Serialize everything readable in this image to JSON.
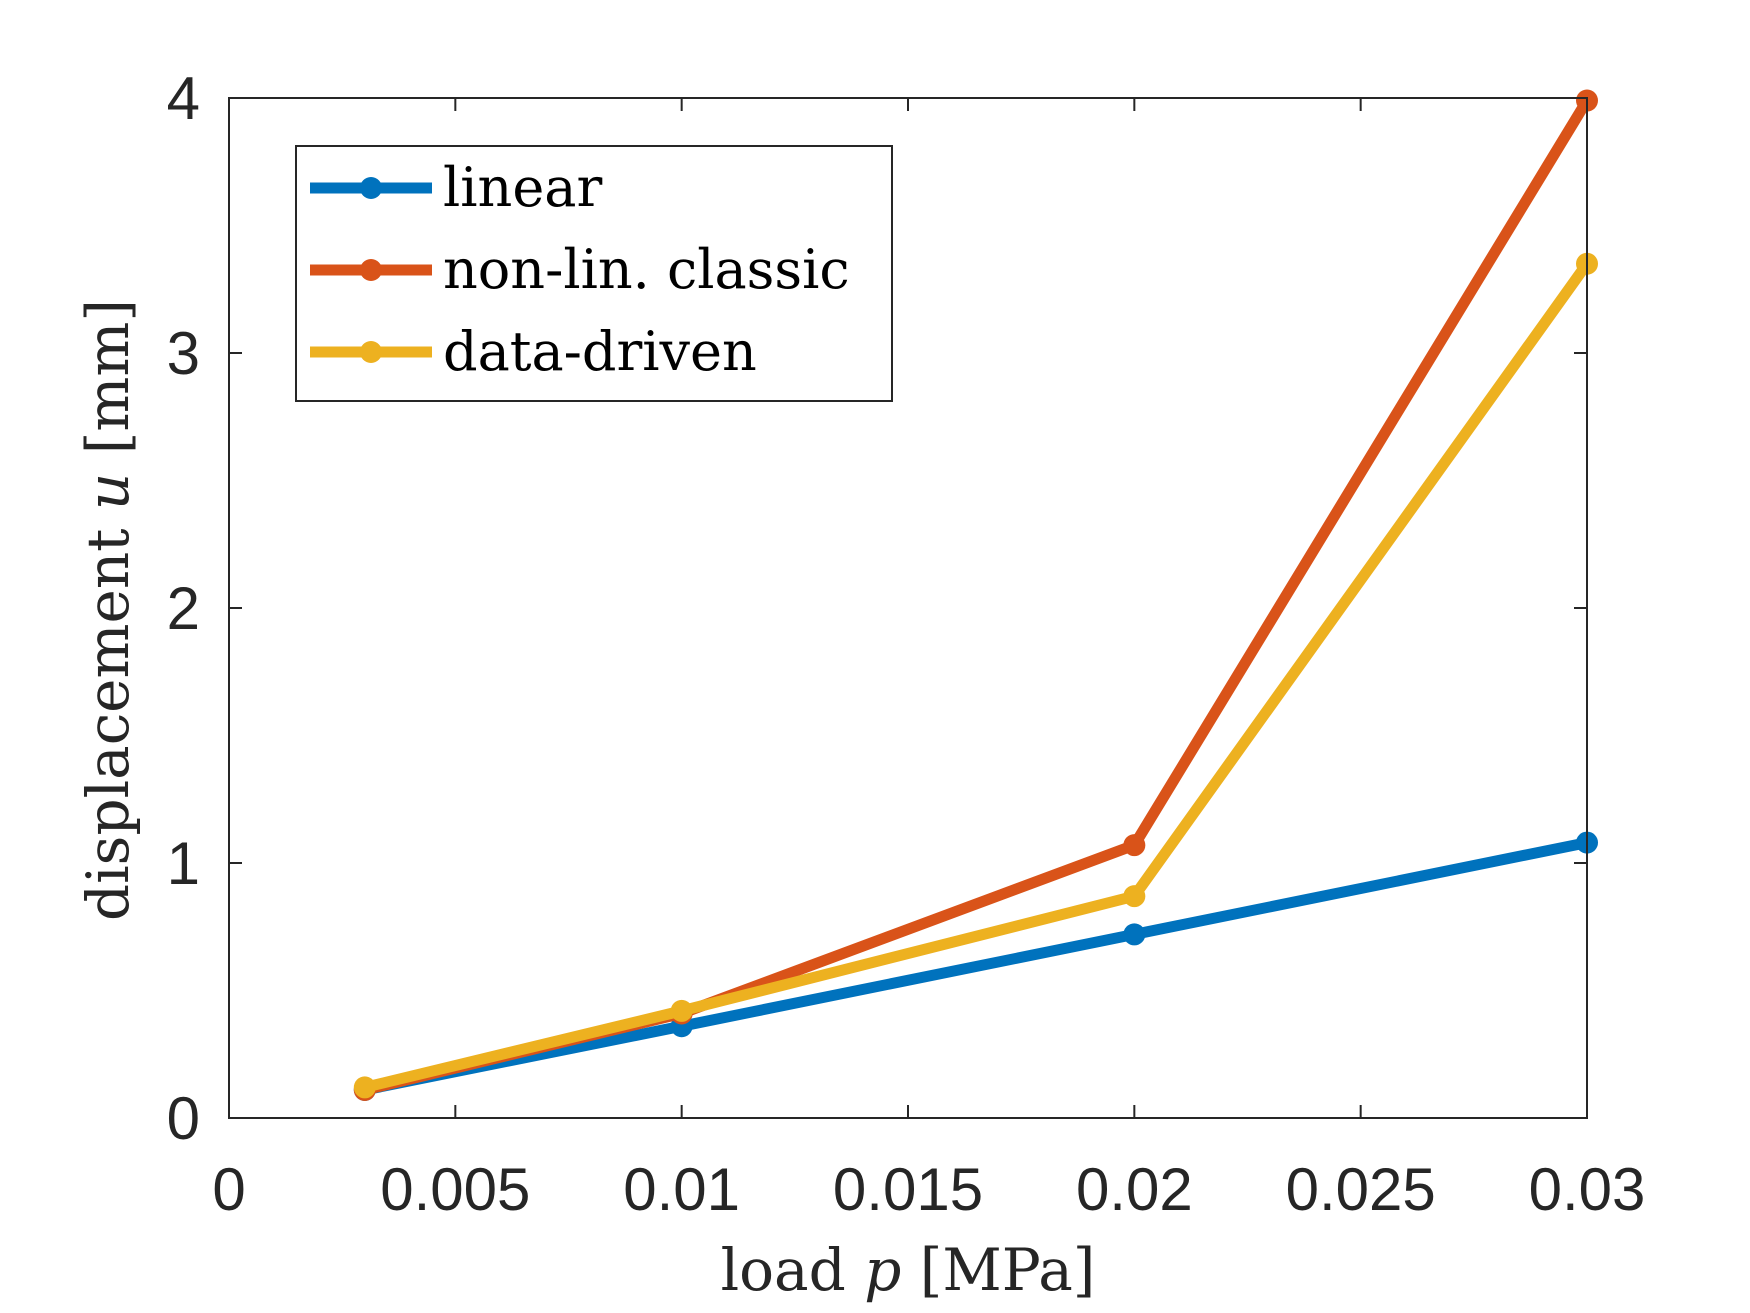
{
  "chart_data": {
    "type": "line",
    "xlabel": "load p [MPa]",
    "ylabel": "displacement u [mm]",
    "xlim": [
      0,
      0.03
    ],
    "ylim": [
      0,
      4
    ],
    "xticks": [
      0,
      0.005,
      0.01,
      0.015,
      0.02,
      0.025,
      0.03
    ],
    "xtick_labels": [
      "0",
      "0.005",
      "0.01",
      "0.015",
      "0.02",
      "0.025",
      "0.03"
    ],
    "yticks": [
      0,
      1,
      2,
      3,
      4
    ],
    "ytick_labels": [
      "0",
      "1",
      "2",
      "3",
      "4"
    ],
    "grid": false,
    "legend_position": "top-left",
    "x": [
      0.003,
      0.01,
      0.02,
      0.03
    ],
    "series": [
      {
        "name": "linear",
        "color": "#0072BD",
        "values": [
          0.11,
          0.36,
          0.72,
          1.08
        ]
      },
      {
        "name": "non-lin. classic",
        "color": "#D95319",
        "values": [
          0.11,
          0.41,
          1.07,
          3.99
        ]
      },
      {
        "name": "data-driven",
        "color": "#EDB120",
        "values": [
          0.12,
          0.42,
          0.87,
          3.35
        ]
      }
    ]
  }
}
